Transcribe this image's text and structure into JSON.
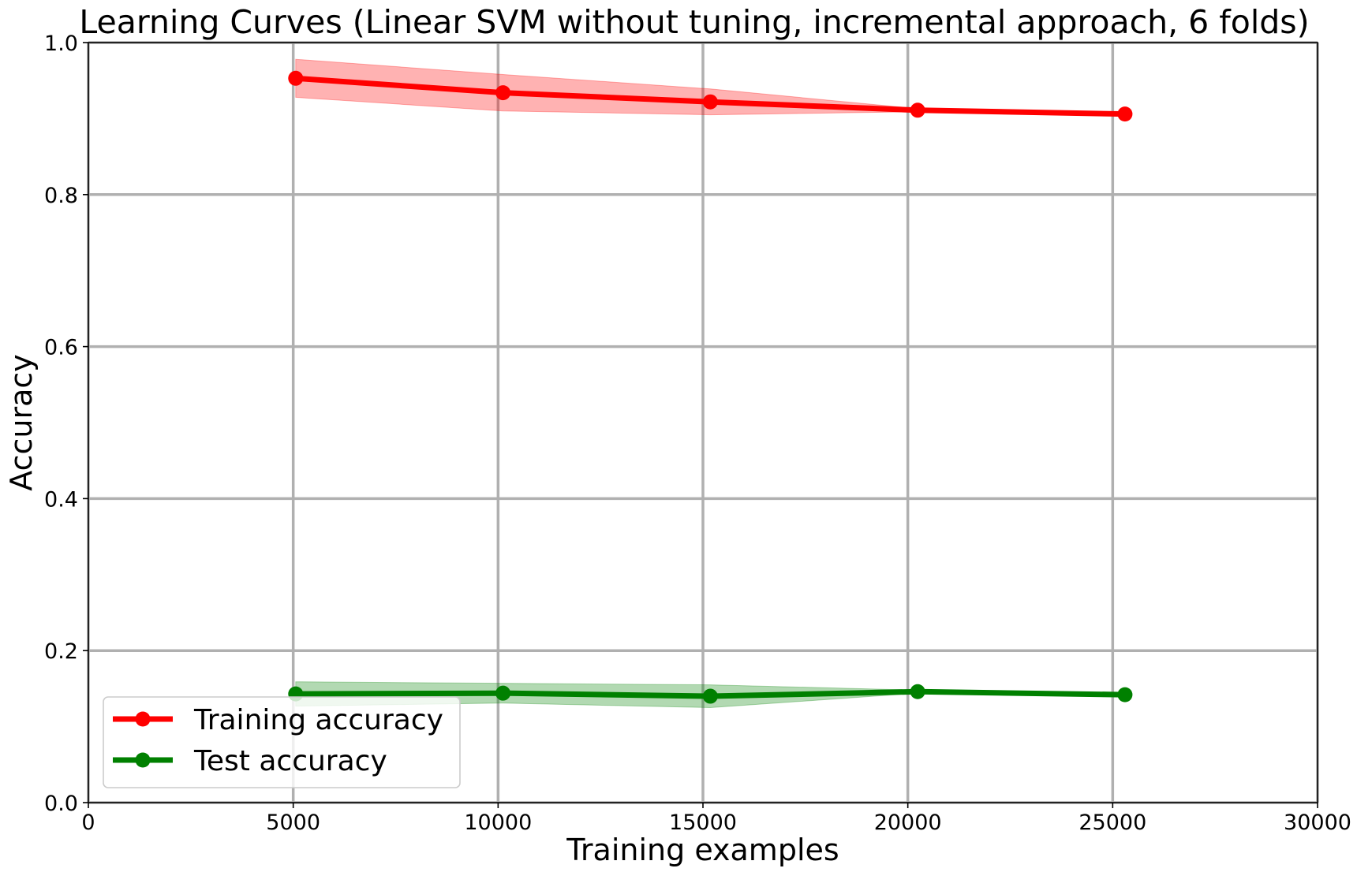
{
  "chart_data": {
    "type": "line",
    "title": "Learning Curves (Linear SVM without tuning, incremental approach, 6 folds)",
    "xlabel": "Training examples",
    "ylabel": "Accuracy",
    "xlim": [
      0,
      30000
    ],
    "ylim": [
      0.0,
      1.0
    ],
    "xticks": [
      0,
      5000,
      10000,
      15000,
      20000,
      25000,
      30000
    ],
    "xtick_labels": [
      "0",
      "5000",
      "10000",
      "15000",
      "20000",
      "25000",
      "30000"
    ],
    "yticks": [
      0.0,
      0.2,
      0.4,
      0.6,
      0.8,
      1.0
    ],
    "ytick_labels": [
      "0.0",
      "0.2",
      "0.4",
      "0.6",
      "0.8",
      "1.0"
    ],
    "grid": true,
    "legend_position": "lower-left",
    "x": [
      5060,
      10120,
      15180,
      20240,
      25300
    ],
    "series": [
      {
        "name": "Training accuracy",
        "color": "#ff0000",
        "band_color": "#ff0000",
        "values": [
          0.953,
          0.934,
          0.922,
          0.911,
          0.906
        ],
        "band_lower": [
          0.928,
          0.91,
          0.905,
          0.909,
          0.906
        ],
        "band_upper": [
          0.978,
          0.958,
          0.939,
          0.913,
          0.906
        ]
      },
      {
        "name": "Test accuracy",
        "color": "#008000",
        "band_color": "#008000",
        "values": [
          0.143,
          0.144,
          0.14,
          0.146,
          0.142
        ],
        "band_lower": [
          0.127,
          0.131,
          0.125,
          0.144,
          0.142
        ],
        "band_upper": [
          0.159,
          0.157,
          0.155,
          0.148,
          0.142
        ]
      }
    ]
  }
}
